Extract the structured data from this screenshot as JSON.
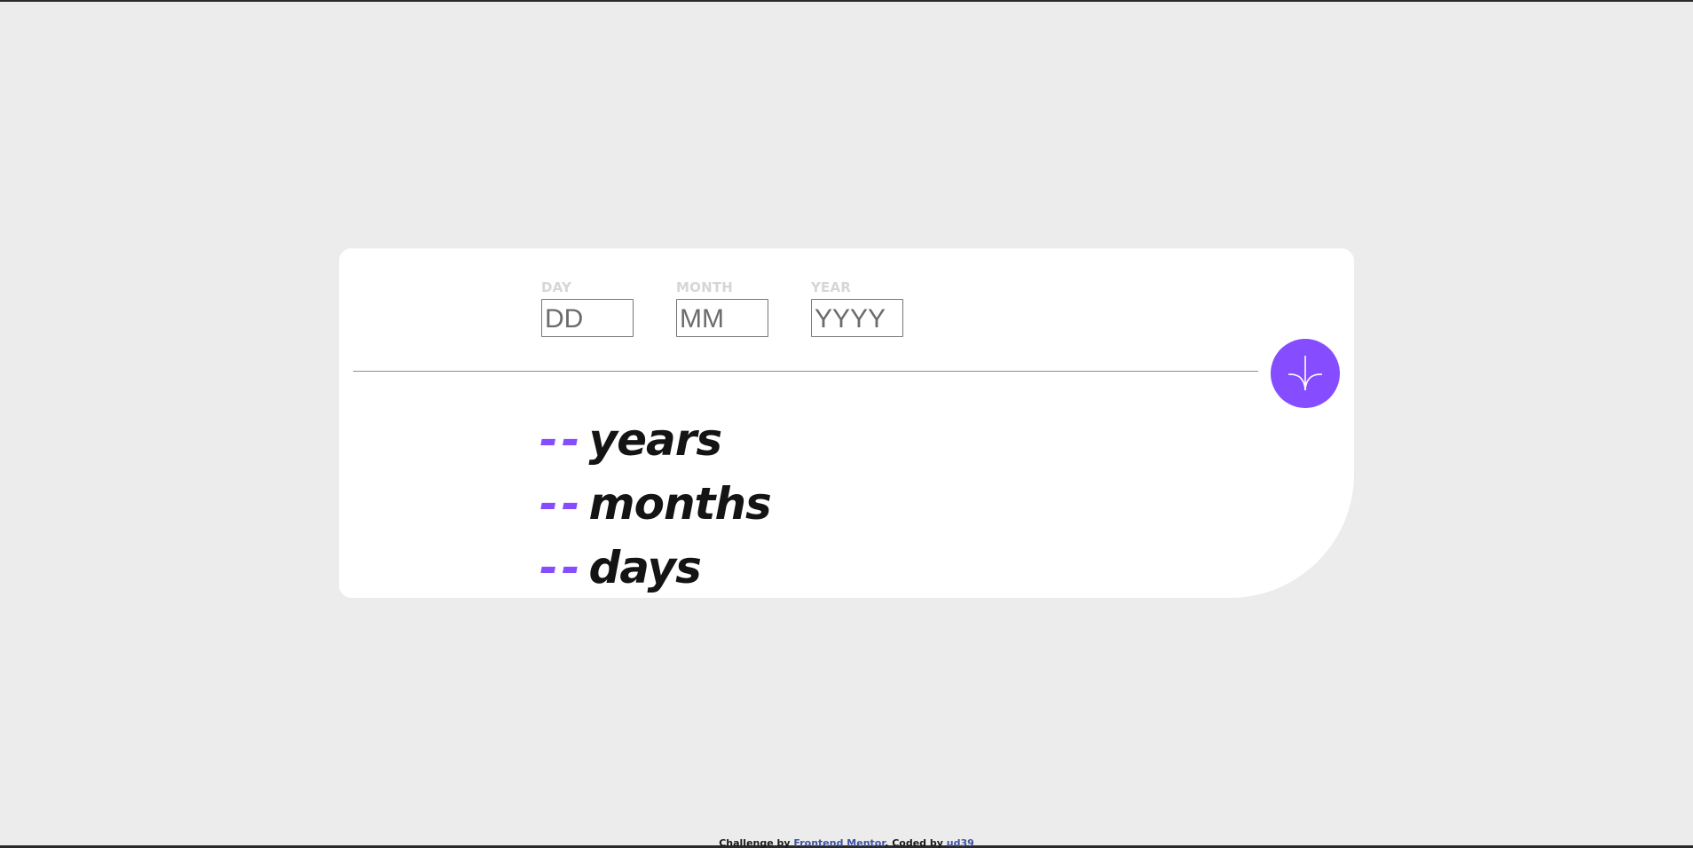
{
  "form": {
    "day": {
      "label": "DAY",
      "placeholder": "DD",
      "value": ""
    },
    "month": {
      "label": "MONTH",
      "placeholder": "MM",
      "value": ""
    },
    "year": {
      "label": "YEAR",
      "placeholder": "YYYY",
      "value": ""
    }
  },
  "submit": {
    "icon": "arrow-down-icon",
    "color": "#854dff"
  },
  "results": [
    {
      "value": "--",
      "unit": "years"
    },
    {
      "value": "--",
      "unit": "months"
    },
    {
      "value": "--",
      "unit": "days"
    }
  ],
  "footer": {
    "prefix": "Challenge by ",
    "link1": "Frontend Mentor",
    "middle": ". Coded by ",
    "link2": "ud39"
  },
  "colors": {
    "accent": "#854dff",
    "background": "#ececec",
    "card": "#ffffff",
    "label": "#d6d6d6",
    "text": "#141414",
    "link": "#3e52a3"
  }
}
